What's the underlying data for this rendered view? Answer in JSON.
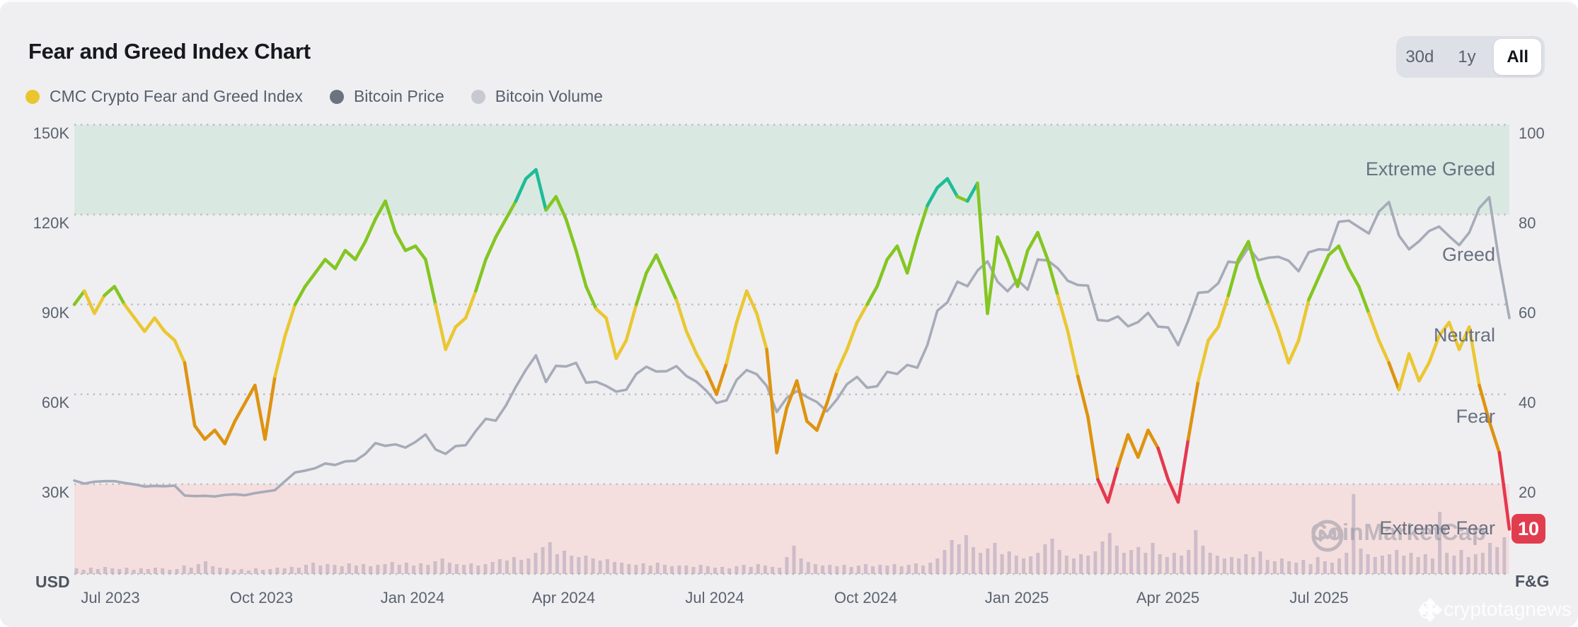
{
  "header": {
    "title": "Fear and Greed Index Chart",
    "legend": [
      {
        "label": "CMC Crypto Fear and Greed Index",
        "color": "#eac62e"
      },
      {
        "label": "Bitcoin Price",
        "color": "#6b7280"
      },
      {
        "label": "Bitcoin Volume",
        "color": "#c6c9d0"
      }
    ],
    "range": {
      "options": [
        "30d",
        "1y",
        "All"
      ],
      "active": "All"
    }
  },
  "axes": {
    "left": {
      "unit": "USD",
      "labels": [
        "150K",
        "120K",
        "90K",
        "60K",
        "30K"
      ]
    },
    "right": {
      "unit": "F&G",
      "labels": [
        "100",
        "80",
        "60",
        "40",
        "20"
      ]
    },
    "x": {
      "labels": [
        "Jul 2023",
        "Oct 2023",
        "Jan 2024",
        "Apr 2024",
        "Jul 2024",
        "Oct 2024",
        "Jan 2025",
        "Apr 2025",
        "Jul 2025"
      ]
    }
  },
  "zones": [
    {
      "label": "Extreme Greed",
      "value": 90
    },
    {
      "label": "Greed",
      "value": 71
    },
    {
      "label": "Neutral",
      "value": 53
    },
    {
      "label": "Fear",
      "value": 35
    },
    {
      "label": "Extreme Fear",
      "value": 10
    }
  ],
  "badge": {
    "value": "10",
    "color": "#e23d4f"
  },
  "watermark": {
    "brand": "CoinMarketCap",
    "credit": "@ cryptotagnews"
  },
  "colors": {
    "background": "#efeff1",
    "greed_band": "#d9e9e2",
    "fear_band": "#f5dede",
    "grid": "#b9bcc2",
    "btc_line": "#a6abb8",
    "volume_bar": "#aba3b8",
    "fg_teal": "#1fbc96",
    "fg_green": "#84c622",
    "fg_yellow": "#eac733",
    "fg_orange": "#de9310",
    "fg_red": "#e5384e"
  },
  "chart_data": {
    "type": "line",
    "title": "Fear and Greed Index Chart",
    "x_start": "2023-06",
    "x_end": "2025-10",
    "x_tick_labels": [
      "Jul 2023",
      "Oct 2023",
      "Jan 2024",
      "Apr 2024",
      "Jul 2024",
      "Oct 2024",
      "Jan 2025",
      "Apr 2025",
      "Jul 2025"
    ],
    "right_axis": {
      "label": "F&G",
      "range": [
        0,
        100
      ],
      "ticks": [
        100,
        80,
        60,
        40,
        20
      ]
    },
    "left_axis": {
      "label": "USD",
      "range": [
        0,
        150000
      ],
      "ticks": [
        "150K",
        "120K",
        "90K",
        "60K",
        "30K"
      ]
    },
    "bands": [
      {
        "label": "Extreme Greed",
        "from": 80,
        "to": 100,
        "color": "#d9e9e2"
      },
      {
        "label": "Extreme Fear",
        "from": 0,
        "to": 20,
        "color": "#f5dede"
      }
    ],
    "grid": "dotted",
    "legend_position": "top-left",
    "series": [
      {
        "name": "CMC Crypto Fear and Greed Index",
        "axis": "right",
        "color_by_value": true,
        "color_stops": [
          {
            "min": 84,
            "color": "#1fbc96"
          },
          {
            "min": 61,
            "color": "#84c622"
          },
          {
            "min": 45,
            "color": "#eac733"
          },
          {
            "min": 27,
            "color": "#de9310"
          },
          {
            "min": 0,
            "color": "#e5384e"
          }
        ],
        "sampling": "weekly",
        "values": [
          60,
          63,
          58,
          62,
          64,
          60,
          57,
          54,
          57,
          54,
          52,
          47,
          33,
          30,
          32,
          29,
          34,
          38,
          42,
          30,
          44,
          53,
          60,
          64,
          67,
          70,
          68,
          72,
          70,
          74,
          79,
          83,
          76,
          72,
          73,
          70,
          60,
          50,
          55,
          57,
          63,
          70,
          75,
          79,
          83,
          88,
          90,
          81,
          84,
          79,
          72,
          64,
          59,
          57,
          48,
          52,
          60,
          67,
          71,
          66,
          61,
          54,
          49,
          45,
          40,
          47,
          56,
          63,
          58,
          50,
          27,
          37,
          43,
          34,
          32,
          38,
          45,
          50,
          56,
          60,
          64,
          70,
          73,
          67,
          75,
          82,
          86,
          88,
          84,
          83,
          87,
          58,
          75,
          70,
          64,
          72,
          76,
          70,
          62,
          54,
          44,
          35,
          21,
          16,
          24,
          31,
          26,
          32,
          28,
          21,
          16,
          30,
          43,
          52,
          55,
          62,
          70,
          74,
          66,
          60,
          54,
          47,
          52,
          61,
          66,
          71,
          73,
          68,
          64,
          58,
          52,
          47,
          41,
          49,
          43,
          47,
          53,
          56,
          50,
          55,
          42,
          34,
          27,
          10
        ],
        "last_value": 10
      },
      {
        "name": "Bitcoin Price",
        "axis": "left",
        "unit": "USD thousands",
        "color": "#a6abb8",
        "sampling": "weekly",
        "values": [
          31.2,
          30.2,
          30.8,
          31.0,
          31.0,
          30.4,
          29.9,
          29.2,
          29.4,
          29.3,
          29.5,
          26.2,
          26.0,
          26.1,
          25.9,
          26.4,
          26.6,
          26.3,
          27.0,
          27.5,
          28.0,
          31.0,
          33.9,
          34.5,
          35.3,
          36.9,
          36.4,
          37.6,
          37.8,
          40.1,
          43.7,
          42.8,
          43.3,
          42.2,
          44.1,
          46.6,
          41.6,
          40.1,
          42.7,
          43.0,
          47.7,
          51.8,
          51.2,
          56.2,
          62.5,
          68.2,
          73.0,
          64.1,
          69.5,
          69.3,
          70.5,
          63.9,
          64.2,
          62.8,
          60.9,
          61.5,
          66.8,
          69.2,
          67.6,
          67.7,
          69.4,
          66.1,
          64.2,
          61.1,
          57.1,
          58.0,
          64.8,
          68.1,
          66.7,
          62.8,
          54.1,
          58.8,
          61.1,
          59.1,
          57.4,
          54.3,
          58.3,
          63.4,
          65.8,
          62.2,
          62.7,
          67.5,
          66.8,
          69.8,
          68.9,
          76.4,
          87.9,
          90.7,
          97.6,
          96.1,
          101.3,
          104.4,
          97.6,
          94.4,
          98.2,
          94.9,
          105.0,
          104.7,
          102.1,
          97.9,
          96.5,
          96.3,
          84.8,
          84.5,
          86.0,
          82.7,
          84.1,
          87.2,
          82.6,
          82.3,
          76.4,
          84.6,
          93.9,
          94.2,
          97.1,
          104.3,
          103.9,
          109.0,
          104.8,
          105.6,
          105.9,
          104.6,
          101.1,
          107.4,
          108.4,
          108.2,
          117.6,
          118.0,
          115.8,
          113.7,
          121.0,
          124.2,
          113.0,
          108.4,
          111.1,
          114.5,
          116.0,
          112.8,
          109.8,
          114.0,
          122.2,
          125.8,
          104.0,
          85.5
        ]
      },
      {
        "name": "Bitcoin Volume",
        "type": "bar",
        "axis": "bottom-overlay",
        "color": "#aba3b8",
        "unit": "relative px",
        "values": [
          8,
          6,
          9,
          7,
          10,
          8,
          7,
          9,
          6,
          8,
          7,
          9,
          8,
          6,
          7,
          12,
          9,
          14,
          18,
          11,
          9,
          8,
          6,
          7,
          5,
          8,
          6,
          7,
          9,
          8,
          10,
          9,
          13,
          16,
          12,
          14,
          13,
          11,
          15,
          12,
          14,
          11,
          13,
          14,
          17,
          13,
          16,
          12,
          15,
          13,
          18,
          22,
          16,
          14,
          13,
          15,
          12,
          14,
          17,
          21,
          19,
          24,
          20,
          22,
          30,
          38,
          45,
          28,
          33,
          26,
          24,
          26,
          22,
          19,
          21,
          17,
          16,
          14,
          13,
          15,
          12,
          16,
          13,
          11,
          12,
          12,
          10,
          13,
          11,
          9,
          10,
          8,
          11,
          13,
          10,
          14,
          12,
          10,
          9,
          24,
          40,
          22,
          17,
          14,
          12,
          13,
          11,
          13,
          10,
          12,
          14,
          11,
          13,
          12,
          14,
          11,
          13,
          15,
          12,
          16,
          22,
          34,
          48,
          42,
          55,
          38,
          30,
          36,
          44,
          28,
          32,
          26,
          22,
          25,
          30,
          42,
          50,
          34,
          26,
          22,
          28,
          26,
          32,
          46,
          58,
          40,
          30,
          34,
          38,
          30,
          44,
          28,
          24,
          30,
          26,
          34,
          62,
          40,
          30,
          26,
          22,
          24,
          22,
          28,
          24,
          32,
          20,
          18,
          22,
          18,
          16,
          20,
          14,
          24,
          18,
          16,
          22,
          30,
          113,
          36,
          28,
          24,
          26,
          28,
          34,
          26,
          30,
          24,
          28,
          22,
          88,
          30,
          26,
          34,
          24,
          28,
          30,
          44,
          38,
          52
        ]
      }
    ]
  }
}
